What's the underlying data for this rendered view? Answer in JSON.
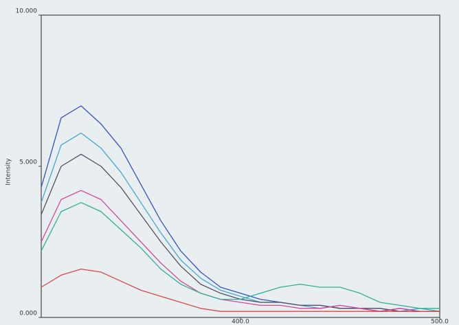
{
  "chart_data": {
    "type": "line",
    "y_label": "Intensity",
    "x": [
      300,
      310,
      320,
      330,
      340,
      350,
      360,
      370,
      380,
      390,
      400,
      410,
      420,
      430,
      440,
      450,
      460,
      470,
      480,
      490,
      500
    ],
    "series": [
      {
        "color": "#3050c8",
        "values": [
          4.3,
          6.6,
          7.0,
          6.4,
          5.6,
          4.4,
          3.2,
          2.2,
          1.5,
          1.0,
          0.8,
          0.6,
          0.5,
          0.4,
          0.4,
          0.3,
          0.3,
          0.2,
          0.3,
          0.2,
          0.2
        ]
      },
      {
        "color": "#40a8d0",
        "values": [
          3.8,
          5.7,
          6.1,
          5.6,
          4.8,
          3.8,
          2.8,
          1.9,
          1.3,
          0.9,
          0.7,
          0.5,
          0.5,
          0.4,
          0.3,
          0.4,
          0.3,
          0.3,
          0.2,
          0.3,
          0.2
        ]
      },
      {
        "color": "#505060",
        "values": [
          3.4,
          5.0,
          5.4,
          5.0,
          4.3,
          3.4,
          2.5,
          1.7,
          1.1,
          0.8,
          0.6,
          0.5,
          0.5,
          0.4,
          0.4,
          0.3,
          0.3,
          0.3,
          0.2,
          0.2,
          0.2
        ]
      },
      {
        "color": "#d04898",
        "values": [
          2.5,
          3.9,
          4.2,
          3.9,
          3.2,
          2.5,
          1.8,
          1.2,
          0.8,
          0.6,
          0.5,
          0.4,
          0.4,
          0.3,
          0.3,
          0.4,
          0.3,
          0.2,
          0.3,
          0.2,
          0.2
        ]
      },
      {
        "color": "#30b090",
        "values": [
          2.2,
          3.5,
          3.8,
          3.5,
          2.9,
          2.3,
          1.6,
          1.1,
          0.8,
          0.6,
          0.6,
          0.8,
          1.0,
          1.1,
          1.0,
          1.0,
          0.8,
          0.5,
          0.4,
          0.3,
          0.3
        ]
      },
      {
        "color": "#d84848",
        "values": [
          1.0,
          1.4,
          1.6,
          1.5,
          1.2,
          0.9,
          0.7,
          0.5,
          0.3,
          0.2,
          0.2,
          0.2,
          0.2,
          0.2,
          0.2,
          0.2,
          0.2,
          0.2,
          0.2,
          0.2,
          0.2
        ]
      }
    ],
    "xlim": [
      300,
      500
    ],
    "ylim": [
      0,
      10
    ],
    "xticks": [
      {
        "value": 400,
        "label": "400.0"
      },
      {
        "value": 500,
        "label": "500.0"
      }
    ],
    "yticks": [
      {
        "value": 0,
        "label": "0.000"
      },
      {
        "value": 5,
        "label": "5.000"
      },
      {
        "value": 10,
        "label": "10.000"
      }
    ]
  }
}
